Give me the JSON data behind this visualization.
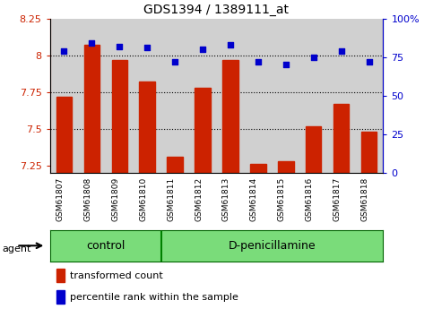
{
  "title": "GDS1394 / 1389111_at",
  "samples": [
    "GSM61807",
    "GSM61808",
    "GSM61809",
    "GSM61810",
    "GSM61811",
    "GSM61812",
    "GSM61813",
    "GSM61814",
    "GSM61815",
    "GSM61816",
    "GSM61817",
    "GSM61818"
  ],
  "bar_values": [
    7.72,
    8.07,
    7.97,
    7.82,
    7.31,
    7.78,
    7.97,
    7.26,
    7.28,
    7.52,
    7.67,
    7.48
  ],
  "dot_values": [
    79,
    84,
    82,
    81,
    72,
    80,
    83,
    72,
    70,
    75,
    79,
    72
  ],
  "ymin": 7.2,
  "ymax": 8.25,
  "y2min": 0,
  "y2max": 100,
  "yticks": [
    7.25,
    7.5,
    7.75,
    8.0,
    8.25
  ],
  "ytick_labels": [
    "7.25",
    "7.5",
    "7.75",
    "8",
    "8.25"
  ],
  "y2ticks": [
    0,
    25,
    50,
    75,
    100
  ],
  "y2ticklabels": [
    "0",
    "25",
    "50",
    "75",
    "100%"
  ],
  "hlines": [
    7.5,
    7.75,
    8.0
  ],
  "bar_color": "#cc2200",
  "dot_color": "#0000cc",
  "n_control": 4,
  "n_treatment": 8,
  "control_label": "control",
  "treatment_label": "D-penicillamine",
  "agent_label": "agent",
  "legend_bar_label": "transformed count",
  "legend_dot_label": "percentile rank within the sample",
  "sample_bg_color": "#d0d0d0",
  "group_bg_color": "#7adc7a",
  "plot_bg_color": "#ffffff",
  "fig_bg_color": "#ffffff"
}
